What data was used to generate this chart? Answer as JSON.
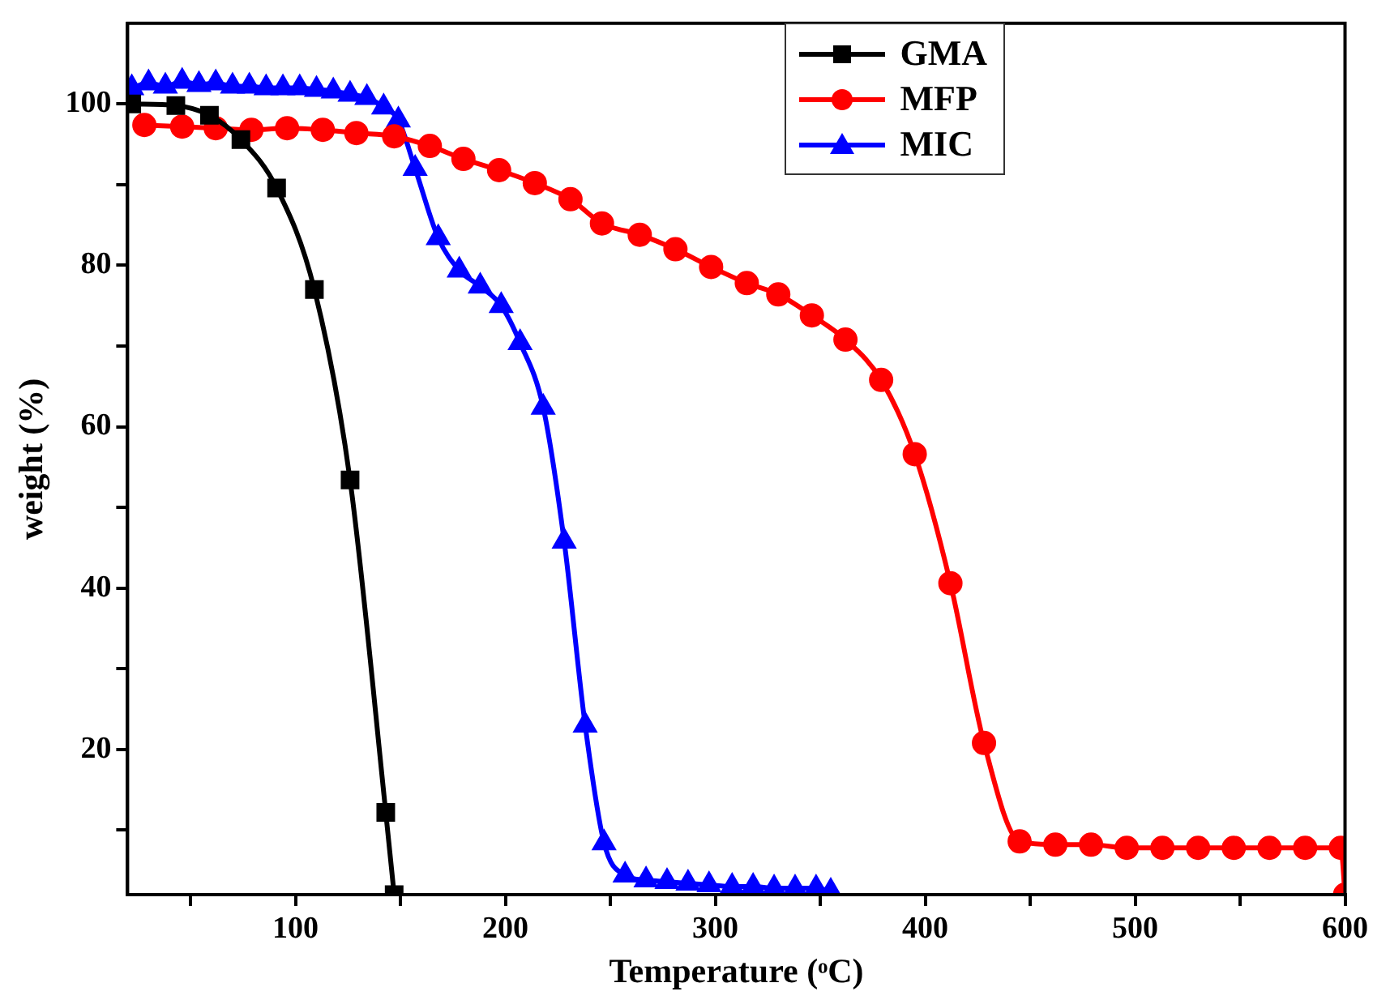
{
  "chart_data": {
    "type": "line",
    "xlabel": "Temperature (ᵒC)",
    "ylabel": "weight (%)",
    "xlim": [
      20,
      600
    ],
    "xticks": [
      {
        "value": 50,
        "label": null
      },
      100,
      {
        "value": 150,
        "label": null
      },
      200,
      {
        "value": 250,
        "label": null
      },
      300,
      {
        "value": 350,
        "label": null
      },
      400,
      {
        "value": 450,
        "label": null
      },
      500,
      {
        "value": 550,
        "label": null
      },
      600
    ],
    "ylim": [
      2,
      110
    ],
    "yticks": [
      {
        "value": 10,
        "label": null
      },
      20,
      {
        "value": 30,
        "label": null
      },
      40,
      {
        "value": 50,
        "label": null
      },
      60,
      {
        "value": 70,
        "label": null
      },
      80,
      {
        "value": 90,
        "label": null
      },
      100
    ],
    "grid": false,
    "legend": "top right",
    "line_style": "solid",
    "series": [
      {
        "name": "GMA",
        "color": "#000000",
        "marker": "square",
        "x": [
          22,
          43,
          59,
          74,
          91,
          109,
          126,
          143,
          147
        ],
        "values": [
          100,
          99.8,
          98.6,
          95.6,
          89.6,
          77,
          53.4,
          12.2,
          2
        ]
      },
      {
        "name": "MFP",
        "color": "#ff0000",
        "marker": "circle",
        "x": [
          28,
          46,
          62,
          79,
          96,
          113,
          129,
          147,
          164,
          180,
          197,
          214,
          231,
          246,
          264,
          281,
          298,
          315,
          330,
          346,
          362,
          379,
          395,
          412,
          428,
          445,
          462,
          479,
          496,
          513,
          530,
          547,
          564,
          581,
          598,
          600
        ],
        "values": [
          97.4,
          97.2,
          97,
          96.8,
          97,
          96.8,
          96.4,
          96,
          94.8,
          93.2,
          91.8,
          90.2,
          88.2,
          85.2,
          83.8,
          82,
          79.8,
          77.8,
          76.4,
          73.8,
          70.8,
          65.8,
          56.6,
          40.6,
          20.8,
          8.6,
          8.2,
          8.2,
          7.8,
          7.8,
          7.8,
          7.8,
          7.8,
          7.8,
          7.8,
          2
        ]
      },
      {
        "name": "MIC",
        "color": "#0000ff",
        "marker": "triangle",
        "x": [
          22,
          30,
          38,
          46,
          54,
          62,
          70,
          78,
          86,
          94,
          102,
          110,
          118,
          126,
          134,
          142,
          149,
          157,
          168,
          178,
          188,
          198,
          207,
          218,
          228,
          238,
          247,
          257,
          267,
          277,
          287,
          297,
          308,
          318,
          328,
          338,
          348,
          355
        ],
        "values": [
          102,
          102.6,
          102.2,
          102.8,
          102.4,
          102.6,
          102.2,
          102.2,
          102,
          102,
          102,
          101.8,
          101.6,
          101.2,
          100.8,
          99.6,
          98,
          92,
          83.4,
          79.4,
          77.4,
          75,
          70.4,
          62.4,
          45.8,
          23,
          8.4,
          4.4,
          3.8,
          3.6,
          3.4,
          3.2,
          3,
          3,
          2.8,
          2.8,
          2.8,
          2.4
        ]
      }
    ]
  }
}
